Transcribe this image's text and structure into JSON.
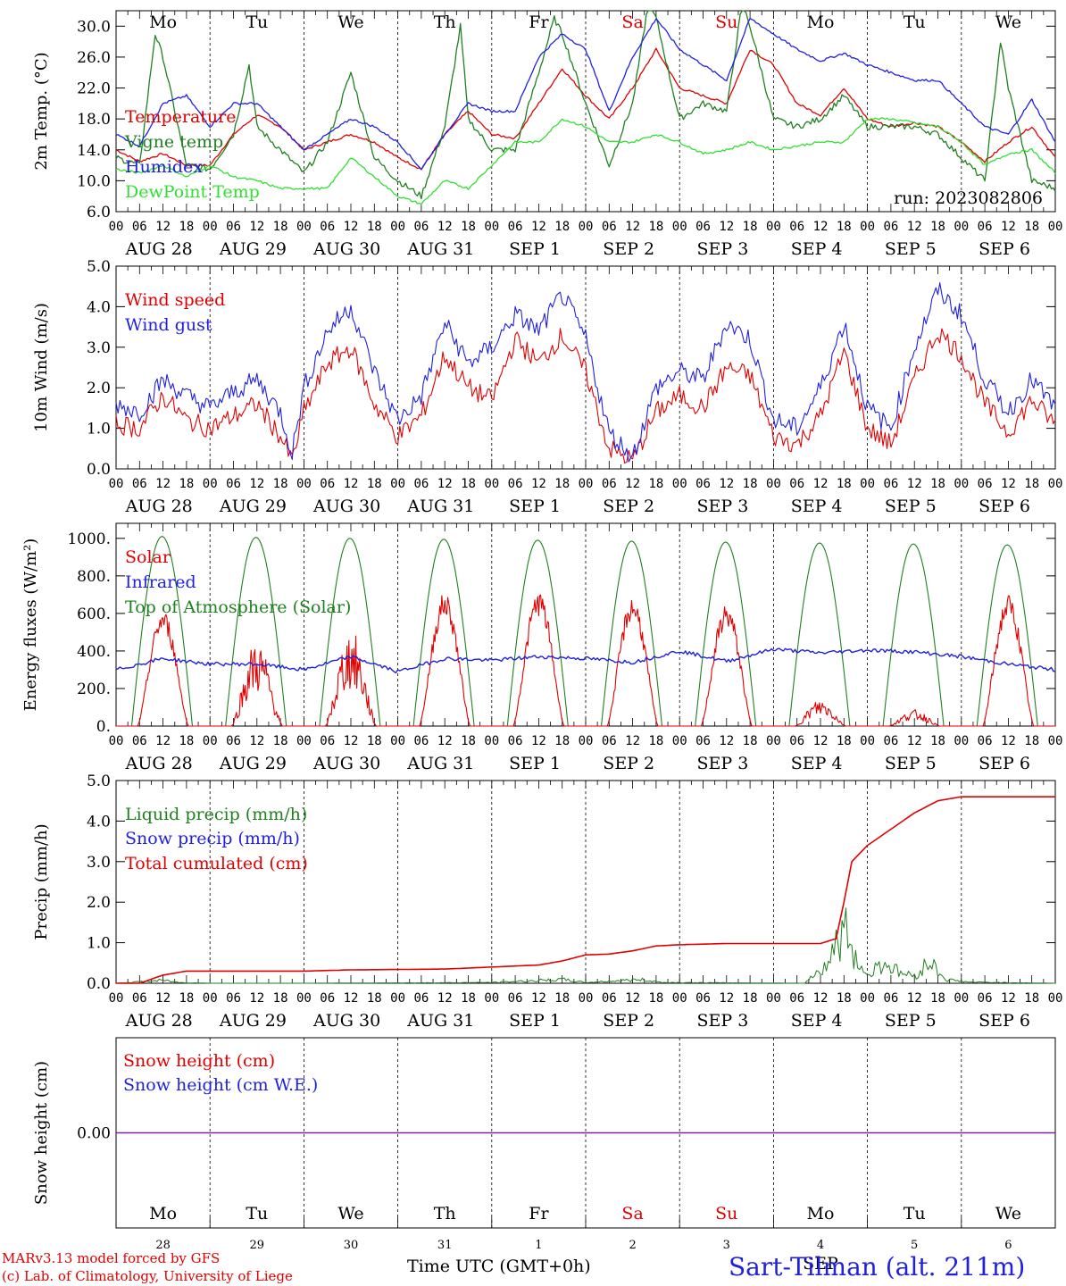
{
  "run_label": "run: 2023082806",
  "day_names": [
    {
      "text": "Mo",
      "color": "#000000"
    },
    {
      "text": "Tu",
      "color": "#000000"
    },
    {
      "text": "We",
      "color": "#000000"
    },
    {
      "text": "Th",
      "color": "#000000"
    },
    {
      "text": "Fr",
      "color": "#000000"
    },
    {
      "text": "Sa",
      "color": "#e00000"
    },
    {
      "text": "Su",
      "color": "#e00000"
    },
    {
      "text": "Mo",
      "color": "#000000"
    },
    {
      "text": "Tu",
      "color": "#000000"
    },
    {
      "text": "We",
      "color": "#000000"
    }
  ],
  "date_labels": [
    "AUG 28",
    "AUG 29",
    "AUG 30",
    "AUG 31",
    "SEP  1",
    "SEP  2",
    "SEP  3",
    "SEP  4",
    "SEP  5",
    "SEP  6"
  ],
  "hour_labels": [
    "00",
    "06",
    "12",
    "18"
  ],
  "bottom_day_numbers": [
    "28",
    "29",
    "30",
    "31",
    "1",
    "2",
    "3",
    "4",
    "5",
    "6"
  ],
  "bottom_month_label": "SEP",
  "footer": {
    "model_line": "MARv3.13 model forced by GFS",
    "lab_line": "(c) Lab. of Climatology, University of Liege",
    "xlabel": "Time UTC (GMT+0h)",
    "station": "Sart-Tilman (alt. 211m)"
  },
  "colors": {
    "red": "#e00000",
    "green": "#208020",
    "blue": "#2020e0",
    "lightgreen": "#30e030",
    "purple": "#8020a0"
  },
  "chart_data": [
    {
      "type": "line",
      "ylabel": "2m Temp. (°C)",
      "ylim": [
        6,
        32
      ],
      "yticks": [
        6,
        10,
        14,
        18,
        22,
        26,
        30
      ],
      "ytick_labels": [
        "6.0",
        "10.0",
        "14.0",
        "18.0",
        "22.0",
        "26.0",
        "30.0"
      ],
      "x_unit": "hours since AUG 28 00 UTC",
      "series": [
        {
          "name": "Temperature",
          "color": "red",
          "x": [
            0,
            6,
            12,
            18,
            24,
            30,
            36,
            42,
            48,
            54,
            60,
            66,
            72,
            78,
            84,
            90,
            96,
            102,
            108,
            114,
            120,
            126,
            132,
            138,
            144,
            150,
            156,
            162,
            168,
            174,
            180,
            186,
            192,
            198,
            204,
            210,
            216,
            222,
            228,
            234,
            240
          ],
          "y": [
            14,
            12.5,
            13.5,
            12,
            12,
            16,
            18.5,
            17,
            14,
            15,
            16,
            15,
            13,
            11.5,
            16,
            19,
            16,
            15.5,
            20,
            24.5,
            21,
            18,
            22,
            27,
            22,
            21,
            20,
            27,
            25,
            20,
            18.5,
            22,
            18,
            17,
            17.5,
            17,
            15,
            12.5,
            15,
            17,
            13
          ]
        },
        {
          "name": "Vigne temp",
          "color": "green",
          "x": [
            0,
            6,
            10,
            12,
            18,
            24,
            30,
            34,
            36,
            42,
            48,
            54,
            60,
            66,
            72,
            78,
            84,
            88,
            90,
            96,
            102,
            108,
            112,
            114,
            120,
            126,
            132,
            136,
            138,
            144,
            150,
            156,
            160,
            162,
            168,
            174,
            180,
            186,
            192,
            198,
            204,
            210,
            216,
            222,
            226,
            228,
            234,
            240
          ],
          "y": [
            13,
            12,
            29,
            26,
            12,
            11.5,
            16,
            25,
            17,
            14,
            11,
            15,
            24,
            13,
            10,
            8,
            17,
            30,
            18,
            14,
            14,
            24,
            31,
            29,
            20,
            12,
            20,
            33,
            31,
            18,
            20,
            19,
            33,
            30,
            18,
            17,
            18,
            21,
            17,
            17,
            17,
            16,
            13,
            10,
            28,
            22,
            10,
            9
          ]
        },
        {
          "name": "Humidex",
          "color": "blue",
          "x": [
            0,
            6,
            12,
            18,
            24,
            30,
            36,
            42,
            48,
            54,
            60,
            66,
            72,
            78,
            84,
            90,
            96,
            102,
            108,
            114,
            120,
            126,
            132,
            138,
            144,
            150,
            156,
            162,
            168,
            174,
            180,
            186,
            192,
            198,
            204,
            210,
            216,
            222,
            228,
            234,
            240
          ],
          "y": [
            16,
            14.5,
            20,
            21,
            17,
            20,
            20,
            17,
            14,
            16,
            18,
            17,
            15,
            11.5,
            16,
            20,
            19,
            19,
            26,
            29,
            27,
            19,
            26,
            31,
            27,
            25,
            23,
            31,
            29,
            27,
            25.5,
            26.5,
            25,
            24,
            23,
            23,
            20,
            17,
            16,
            20.5,
            15
          ]
        },
        {
          "name": "DewPoint Temp",
          "color": "lightgreen",
          "x": [
            0,
            6,
            12,
            18,
            24,
            30,
            36,
            42,
            48,
            54,
            60,
            66,
            72,
            78,
            84,
            90,
            96,
            102,
            108,
            114,
            120,
            126,
            132,
            138,
            144,
            150,
            156,
            162,
            168,
            174,
            180,
            186,
            192,
            198,
            204,
            210,
            216,
            222,
            228,
            234,
            240
          ],
          "y": [
            11.5,
            11,
            12,
            10.5,
            12,
            10.5,
            10,
            9,
            9,
            9,
            13,
            10.5,
            8,
            7,
            10,
            9,
            12,
            15,
            15,
            18,
            17,
            15,
            15,
            16,
            15,
            13.5,
            14,
            15,
            14,
            14.5,
            15,
            15,
            18,
            18,
            17.5,
            17,
            15,
            12,
            13.5,
            14,
            11
          ]
        }
      ]
    },
    {
      "type": "line",
      "ylabel": "10m Wind (m/s)",
      "ylim": [
        0,
        5
      ],
      "yticks": [
        0,
        1,
        2,
        3,
        4,
        5
      ],
      "ytick_labels": [
        "0.0",
        "1.0",
        "2.0",
        "3.0",
        "4.0",
        "5.0"
      ],
      "x_unit": "hours since AUG 28 00 UTC",
      "series": [
        {
          "name": "Wind speed",
          "color": "red",
          "x": [
            0,
            6,
            12,
            18,
            24,
            30,
            36,
            42,
            45,
            48,
            54,
            60,
            66,
            72,
            78,
            84,
            90,
            96,
            102,
            108,
            114,
            120,
            126,
            132,
            138,
            144,
            150,
            156,
            162,
            168,
            174,
            180,
            186,
            192,
            198,
            204,
            210,
            216,
            222,
            228,
            234,
            240
          ],
          "y": [
            1.1,
            1.0,
            1.8,
            1.2,
            1.0,
            1.3,
            1.6,
            0.8,
            0.2,
            1.4,
            2.6,
            3.0,
            1.6,
            0.8,
            1.3,
            2.8,
            2.0,
            1.7,
            3.2,
            2.6,
            3.3,
            2.4,
            0.5,
            0.2,
            1.4,
            1.8,
            1.5,
            2.5,
            2.3,
            0.8,
            0.6,
            1.3,
            2.9,
            1.0,
            0.6,
            2.2,
            3.4,
            2.8,
            1.6,
            0.9,
            1.7,
            1.1
          ]
        },
        {
          "name": "Wind gust",
          "color": "blue",
          "x": [
            0,
            6,
            12,
            18,
            24,
            30,
            36,
            42,
            45,
            48,
            54,
            60,
            66,
            72,
            78,
            84,
            90,
            96,
            102,
            108,
            114,
            120,
            126,
            132,
            138,
            144,
            150,
            156,
            162,
            168,
            174,
            180,
            186,
            192,
            198,
            204,
            210,
            216,
            222,
            228,
            234,
            240
          ],
          "y": [
            1.6,
            1.4,
            2.2,
            1.8,
            1.5,
            1.9,
            2.2,
            1.4,
            0.4,
            2.0,
            3.4,
            4.0,
            2.4,
            1.2,
            1.8,
            3.6,
            2.6,
            3.0,
            3.8,
            3.4,
            4.3,
            3.2,
            0.9,
            0.3,
            2.0,
            2.4,
            2.2,
            3.6,
            3.2,
            1.2,
            1.0,
            2.0,
            3.6,
            1.5,
            1.0,
            3.0,
            4.4,
            3.8,
            2.2,
            1.4,
            2.2,
            1.5
          ]
        }
      ]
    },
    {
      "type": "line",
      "ylabel": "Energy fluxes (W/m²)",
      "ylim": [
        0,
        1080
      ],
      "yticks": [
        0,
        200,
        400,
        600,
        800,
        1000
      ],
      "ytick_labels": [
        "0.",
        "200.",
        "400.",
        "600.",
        "800.",
        "1000."
      ],
      "x_unit": "hours since AUG 28 00 UTC",
      "series": [
        {
          "name": "Solar",
          "color": "red",
          "daily_peak": [
            590,
            420,
            470,
            680,
            690,
            660,
            620,
            130,
            80,
            670
          ]
        },
        {
          "name": "Infrared",
          "color": "blue",
          "x": [
            0,
            12,
            24,
            36,
            48,
            60,
            72,
            84,
            96,
            108,
            120,
            132,
            144,
            156,
            168,
            180,
            192,
            204,
            216,
            228,
            240
          ],
          "y": [
            300,
            360,
            330,
            330,
            300,
            370,
            290,
            360,
            350,
            370,
            360,
            340,
            400,
            345,
            410,
            390,
            405,
            395,
            370,
            330,
            300
          ]
        },
        {
          "name": "Top of Atmosphere (Solar)",
          "color": "green",
          "daily_peak": [
            1010,
            1005,
            1000,
            995,
            990,
            985,
            980,
            975,
            970,
            965
          ]
        }
      ]
    },
    {
      "type": "line",
      "ylabel": "Precip (mm/h)",
      "ylim": [
        0,
        5
      ],
      "yticks": [
        0,
        1,
        2,
        3,
        4,
        5
      ],
      "ytick_labels": [
        "0.0",
        "1.0",
        "2.0",
        "3.0",
        "4.0",
        "5.0"
      ],
      "x_unit": "hours since AUG 28 00 UTC",
      "series": [
        {
          "name": "Liquid precip (mm/h)",
          "color": "green",
          "x": [
            0,
            8,
            12,
            16,
            24,
            48,
            96,
            114,
            120,
            134,
            140,
            176,
            182,
            186,
            190,
            192,
            196,
            200,
            204,
            208,
            212,
            218,
            240
          ],
          "y": [
            0,
            0.05,
            0.08,
            0.02,
            0,
            0,
            0.02,
            0.1,
            0.02,
            0.1,
            0.02,
            0,
            0.6,
            1.5,
            0.5,
            0.2,
            0.6,
            0.3,
            0.2,
            0.6,
            0.1,
            0.03,
            0
          ]
        },
        {
          "name": "Snow precip (mm/h)",
          "color": "blue",
          "x": [
            0,
            240
          ],
          "y": [
            0,
            0
          ]
        },
        {
          "name": "Total cumulated (cm)",
          "color": "red",
          "x": [
            0,
            6,
            12,
            18,
            24,
            48,
            60,
            84,
            96,
            108,
            114,
            120,
            126,
            132,
            138,
            144,
            156,
            168,
            180,
            184,
            186,
            188,
            192,
            198,
            204,
            210,
            216,
            228,
            240
          ],
          "y": [
            0,
            0,
            0.2,
            0.3,
            0.3,
            0.3,
            0.33,
            0.35,
            0.4,
            0.45,
            0.55,
            0.7,
            0.72,
            0.8,
            0.92,
            0.95,
            0.98,
            0.98,
            0.98,
            1.1,
            2.0,
            3.0,
            3.4,
            3.8,
            4.2,
            4.5,
            4.6,
            4.6,
            4.6
          ]
        }
      ]
    },
    {
      "type": "line",
      "ylabel": "Snow height (cm)",
      "ylim": [
        -1,
        1
      ],
      "yticks": [
        0
      ],
      "ytick_labels": [
        "0.00"
      ],
      "x_unit": "hours since AUG 28 00 UTC",
      "series": [
        {
          "name": "Snow height (cm)",
          "color": "red",
          "x": [
            0,
            240
          ],
          "y": [
            0,
            0
          ]
        },
        {
          "name": "Snow height (cm W.E.)",
          "color": "blue",
          "x": [
            0,
            240
          ],
          "y": [
            0,
            0
          ]
        }
      ]
    }
  ]
}
